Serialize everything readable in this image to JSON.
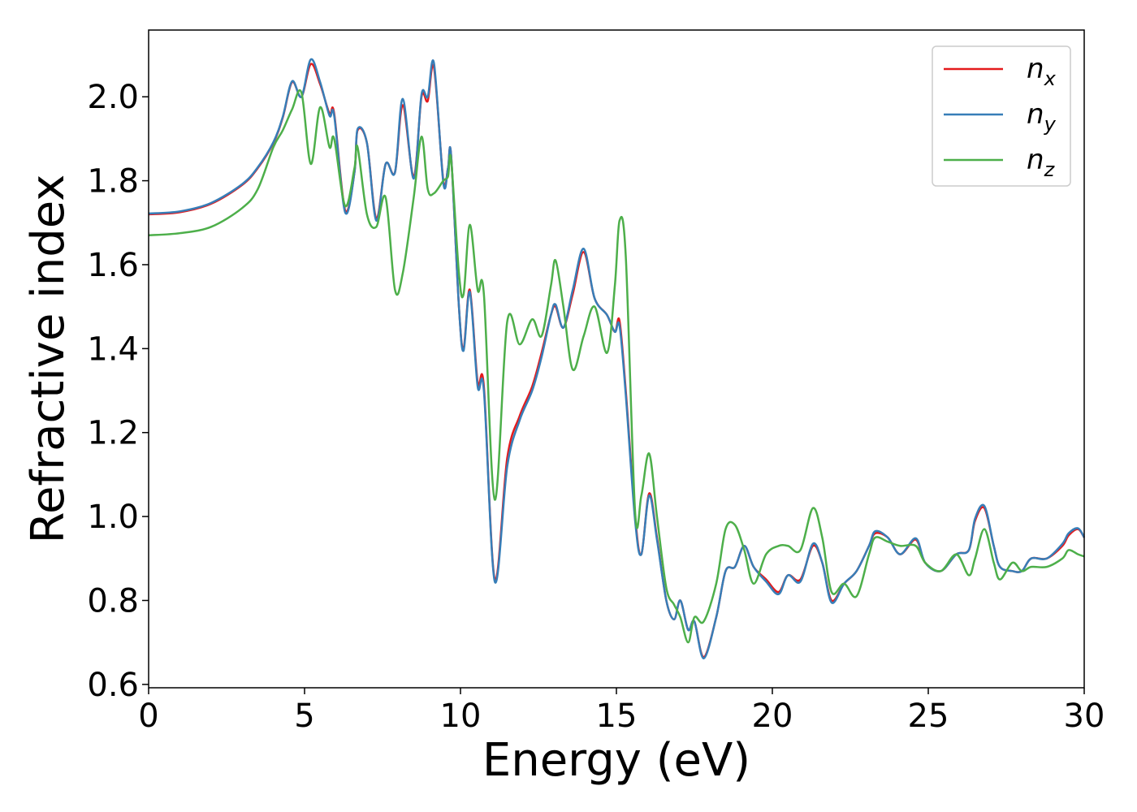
{
  "chart_data": {
    "type": "line",
    "xlabel": "Energy (eV)",
    "ylabel": "Refractive index",
    "x": [
      0,
      1,
      2,
      3,
      3.5,
      4,
      4.3,
      4.6,
      4.9,
      5.2,
      5.5,
      5.8,
      5.95,
      6.3,
      6.6,
      6.7,
      7.0,
      7.3,
      7.6,
      7.9,
      8.15,
      8.5,
      8.75,
      8.95,
      9.15,
      9.45,
      9.6,
      9.7,
      9.95,
      10.1,
      10.3,
      10.55,
      10.75,
      11.1,
      11.5,
      11.9,
      12.3,
      12.6,
      12.9,
      13.05,
      13.3,
      13.6,
      13.95,
      14.3,
      14.7,
      14.95,
      15.1,
      15.3,
      15.6,
      15.8,
      16.05,
      16.3,
      16.6,
      16.85,
      17.05,
      17.3,
      17.5,
      17.8,
      18.2,
      18.5,
      18.8,
      19.1,
      19.4,
      19.8,
      20.2,
      20.5,
      20.9,
      21.3,
      21.6,
      21.9,
      22.3,
      22.7,
      23.1,
      23.3,
      23.7,
      24.1,
      24.6,
      24.9,
      25.4,
      25.9,
      26.3,
      26.5,
      26.8,
      27.1,
      27.3,
      27.7,
      28.0,
      28.3,
      28.8,
      29.3,
      29.5,
      29.8,
      30.0
    ],
    "series": [
      {
        "name": "n",
        "sub": "x",
        "color": "#e41a1c",
        "values": [
          1.72,
          1.725,
          1.745,
          1.79,
          1.83,
          1.89,
          1.95,
          2.035,
          2.0,
          2.078,
          2.03,
          1.96,
          1.96,
          1.73,
          1.82,
          1.92,
          1.89,
          1.71,
          1.84,
          1.82,
          1.98,
          1.81,
          2.0,
          1.99,
          2.07,
          1.8,
          1.83,
          1.86,
          1.5,
          1.4,
          1.54,
          1.32,
          1.31,
          0.85,
          1.14,
          1.24,
          1.31,
          1.39,
          1.48,
          1.5,
          1.45,
          1.53,
          1.63,
          1.52,
          1.48,
          1.44,
          1.466,
          1.3,
          1.0,
          0.91,
          1.055,
          0.95,
          0.8,
          0.755,
          0.8,
          0.73,
          0.75,
          0.665,
          0.76,
          0.87,
          0.88,
          0.93,
          0.88,
          0.85,
          0.82,
          0.86,
          0.85,
          0.93,
          0.89,
          0.8,
          0.84,
          0.87,
          0.93,
          0.96,
          0.95,
          0.91,
          0.945,
          0.89,
          0.87,
          0.91,
          0.92,
          0.99,
          1.02,
          0.93,
          0.88,
          0.87,
          0.87,
          0.9,
          0.9,
          0.93,
          0.955,
          0.97,
          0.95
        ]
      },
      {
        "name": "n",
        "sub": "y",
        "color": "#377eb8",
        "values": [
          1.722,
          1.727,
          1.747,
          1.792,
          1.832,
          1.892,
          1.952,
          2.037,
          2.0,
          2.089,
          2.035,
          1.955,
          1.955,
          1.725,
          1.82,
          1.923,
          1.89,
          1.705,
          1.84,
          1.82,
          1.995,
          1.805,
          2.005,
          2.0,
          2.08,
          1.795,
          1.83,
          1.86,
          1.5,
          1.395,
          1.535,
          1.31,
          1.3,
          0.845,
          1.12,
          1.23,
          1.3,
          1.38,
          1.48,
          1.505,
          1.45,
          1.54,
          1.638,
          1.52,
          1.48,
          1.44,
          1.455,
          1.29,
          0.99,
          0.91,
          1.05,
          0.945,
          0.8,
          0.755,
          0.8,
          0.73,
          0.75,
          0.662,
          0.76,
          0.87,
          0.88,
          0.93,
          0.88,
          0.845,
          0.815,
          0.86,
          0.845,
          0.935,
          0.89,
          0.795,
          0.84,
          0.87,
          0.93,
          0.965,
          0.95,
          0.91,
          0.948,
          0.89,
          0.87,
          0.91,
          0.92,
          0.995,
          1.025,
          0.93,
          0.88,
          0.87,
          0.87,
          0.9,
          0.9,
          0.935,
          0.96,
          0.972,
          0.95
        ]
      },
      {
        "name": "n",
        "sub": "z",
        "color": "#4daf4a",
        "values": [
          1.67,
          1.675,
          1.69,
          1.735,
          1.78,
          1.88,
          1.92,
          1.97,
          2.01,
          1.84,
          1.975,
          1.88,
          1.9,
          1.74,
          1.83,
          1.88,
          1.72,
          1.69,
          1.76,
          1.54,
          1.58,
          1.76,
          1.905,
          1.78,
          1.77,
          1.8,
          1.81,
          1.85,
          1.58,
          1.53,
          1.695,
          1.54,
          1.53,
          1.04,
          1.465,
          1.41,
          1.47,
          1.43,
          1.55,
          1.61,
          1.5,
          1.35,
          1.43,
          1.5,
          1.39,
          1.55,
          1.705,
          1.62,
          1.01,
          1.05,
          1.15,
          1.0,
          0.83,
          0.79,
          0.76,
          0.7,
          0.76,
          0.75,
          0.84,
          0.97,
          0.98,
          0.92,
          0.84,
          0.91,
          0.93,
          0.93,
          0.92,
          1.02,
          0.95,
          0.82,
          0.84,
          0.81,
          0.91,
          0.95,
          0.94,
          0.93,
          0.93,
          0.89,
          0.87,
          0.91,
          0.86,
          0.9,
          0.97,
          0.89,
          0.85,
          0.89,
          0.87,
          0.88,
          0.88,
          0.9,
          0.92,
          0.91,
          0.905
        ]
      }
    ],
    "xlim": [
      0,
      30
    ],
    "xticks": [
      0,
      5,
      10,
      15,
      20,
      25,
      30
    ],
    "ylim": [
      0.592,
      2.159
    ],
    "yticks": [
      0.6,
      0.8,
      {
        "value": 1,
        "label": "1.0"
      },
      1.2,
      1.4,
      1.6,
      1.8,
      {
        "value": 2,
        "label": "2.0"
      }
    ],
    "legend": "upper right",
    "grid": false
  }
}
